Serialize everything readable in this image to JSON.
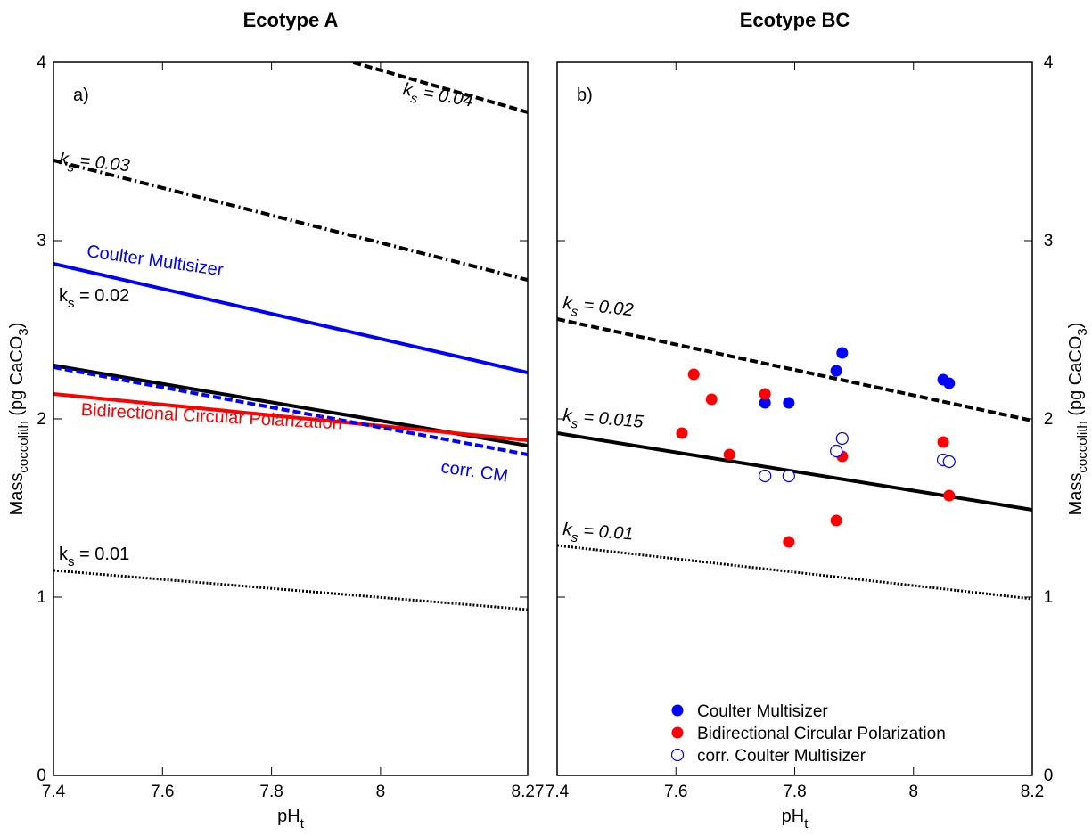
{
  "chart_data": [
    {
      "type": "line",
      "title": "Ecotype A",
      "panel_label": "a)",
      "xlabel": "pH",
      "xlabel_sub": "t",
      "ylabel": "Mass",
      "ylabel_sub": "coccolith",
      "ylabel_unit_pre": " (pg CaCO",
      "ylabel_unit_sub": "3",
      "ylabel_unit_post": ")",
      "xlim": [
        7.4,
        8.27
      ],
      "ylim": [
        0,
        4
      ],
      "xticks": [
        7.4,
        7.6,
        7.8,
        8
      ],
      "xtick_labels": [
        "7.4",
        "7.6",
        "7.8",
        "8"
      ],
      "xmax_label": "8.27",
      "yticks": [
        0,
        1,
        2,
        3,
        4
      ],
      "ytick_labels": [
        "0",
        "1",
        "2",
        "3",
        "4"
      ],
      "grid": false,
      "series": [
        {
          "style": "dash",
          "color": "#000000",
          "x": [
            7.95,
            8.27
          ],
          "y": [
            4.0,
            3.72
          ]
        },
        {
          "style": "dashdot",
          "color": "#000000",
          "x": [
            7.4,
            8.27
          ],
          "y": [
            3.45,
            2.78
          ]
        },
        {
          "name": "Coulter Multisizer",
          "style": "solid",
          "color": "#0000ff",
          "x": [
            7.4,
            8.27
          ],
          "y": [
            2.87,
            2.26
          ]
        },
        {
          "style": "solid",
          "color": "#000000",
          "x": [
            7.4,
            8.27
          ],
          "y": [
            2.3,
            1.85
          ]
        },
        {
          "name": "Bidirectional Circular Polarization",
          "style": "solid",
          "color": "#ff0000",
          "x": [
            7.4,
            8.27
          ],
          "y": [
            2.14,
            1.88
          ]
        },
        {
          "name": "corr. CM",
          "style": "dash",
          "color": "#0000ff",
          "x": [
            7.4,
            8.27
          ],
          "y": [
            2.29,
            1.8
          ]
        },
        {
          "style": "dot",
          "color": "#000000",
          "x": [
            7.4,
            8.27
          ],
          "y": [
            1.15,
            0.93
          ]
        }
      ],
      "annotations": [
        {
          "pre": "k",
          "sub": "s",
          "post": " = 0.04",
          "italic": true,
          "color": "#000000",
          "x": 8.03,
          "y": 3.82,
          "rotate": 10
        },
        {
          "pre": "k",
          "sub": "s",
          "post": " = 0.03",
          "italic": true,
          "color": "#000000",
          "x": 7.4,
          "y": 3.43,
          "rotate": 6
        },
        {
          "text": "Coulter Multisizer",
          "italic": false,
          "color": "#0000ff",
          "x": 7.45,
          "y": 2.91,
          "rotate": 8
        },
        {
          "pre": "k",
          "sub": "s",
          "post": " = 0.02",
          "italic": false,
          "color": "#000000",
          "x": 7.4,
          "y": 2.66,
          "rotate": 0
        },
        {
          "text": "Bidirectional Circular Polarization",
          "italic": false,
          "color": "#ff0000",
          "x": 7.44,
          "y": 2.02,
          "rotate": 3
        },
        {
          "text": "corr. CM",
          "italic": false,
          "color": "#0000ff",
          "x": 8.1,
          "y": 1.7,
          "rotate": 8
        },
        {
          "pre": "k",
          "sub": "s",
          "post": " = 0.01",
          "italic": false,
          "color": "#000000",
          "x": 7.4,
          "y": 1.21,
          "rotate": 0
        }
      ]
    },
    {
      "type": "scatter",
      "title": "Ecotype BC",
      "panel_label": "b)",
      "xlabel": "pH",
      "xlabel_sub": "t",
      "ylabel": "Mass",
      "ylabel_sub": "coccolith",
      "ylabel_unit_pre": " (pg CaCO",
      "ylabel_unit_sub": "3",
      "ylabel_unit_post": ")",
      "xlim": [
        7.4,
        8.2
      ],
      "ylim": [
        0,
        4
      ],
      "xticks": [
        7.4,
        7.6,
        7.8,
        8,
        8.2
      ],
      "xtick_labels": [
        "7.4",
        "7.6",
        "7.8",
        "8",
        "8.2"
      ],
      "yticks": [
        0,
        1,
        2,
        3,
        4
      ],
      "ytick_labels": [
        "0",
        "1",
        "2",
        "3",
        "4"
      ],
      "yaxis_side": "right",
      "grid": false,
      "lines": [
        {
          "style": "dash",
          "color": "#000000",
          "x": [
            7.4,
            8.2
          ],
          "y": [
            2.56,
            1.99
          ]
        },
        {
          "style": "solid",
          "color": "#000000",
          "x": [
            7.4,
            8.2
          ],
          "y": [
            1.92,
            1.49
          ]
        },
        {
          "style": "dot",
          "color": "#000000",
          "x": [
            7.4,
            8.2
          ],
          "y": [
            1.29,
            0.99
          ]
        }
      ],
      "series": [
        {
          "name": "Coulter Multisizer",
          "marker": "filled",
          "color": "#0000ff",
          "x": [
            7.75,
            7.79,
            7.87,
            7.88,
            8.05,
            8.06
          ],
          "y": [
            2.09,
            2.09,
            2.27,
            2.37,
            2.22,
            2.2
          ]
        },
        {
          "name": "Bidirectional Circular Polarization",
          "marker": "filled",
          "color": "#ff0000",
          "x": [
            7.61,
            7.63,
            7.66,
            7.69,
            7.75,
            7.79,
            7.87,
            7.88,
            8.05,
            8.06
          ],
          "y": [
            1.92,
            2.25,
            2.11,
            1.8,
            2.14,
            1.31,
            1.43,
            1.79,
            1.87,
            1.57
          ]
        },
        {
          "name": "corr. Coulter Multisizer",
          "marker": "open",
          "color": "#0000ff",
          "x": [
            7.75,
            7.79,
            7.87,
            7.88,
            8.05,
            8.06
          ],
          "y": [
            1.68,
            1.68,
            1.82,
            1.89,
            1.77,
            1.76
          ]
        }
      ],
      "annotations": [
        {
          "pre": "k",
          "sub": "s",
          "post": " = 0.02",
          "italic": true,
          "color": "#000000",
          "x": 7.4,
          "y": 2.62,
          "rotate": 6
        },
        {
          "pre": "k",
          "sub": "s",
          "post": " = 0.015",
          "italic": true,
          "color": "#000000",
          "x": 7.4,
          "y": 1.99,
          "rotate": 5
        },
        {
          "pre": "k",
          "sub": "s",
          "post": " = 0.01",
          "italic": true,
          "color": "#000000",
          "x": 7.4,
          "y": 1.35,
          "rotate": 4
        }
      ],
      "legend": {
        "position": "bottom-right"
      }
    }
  ]
}
